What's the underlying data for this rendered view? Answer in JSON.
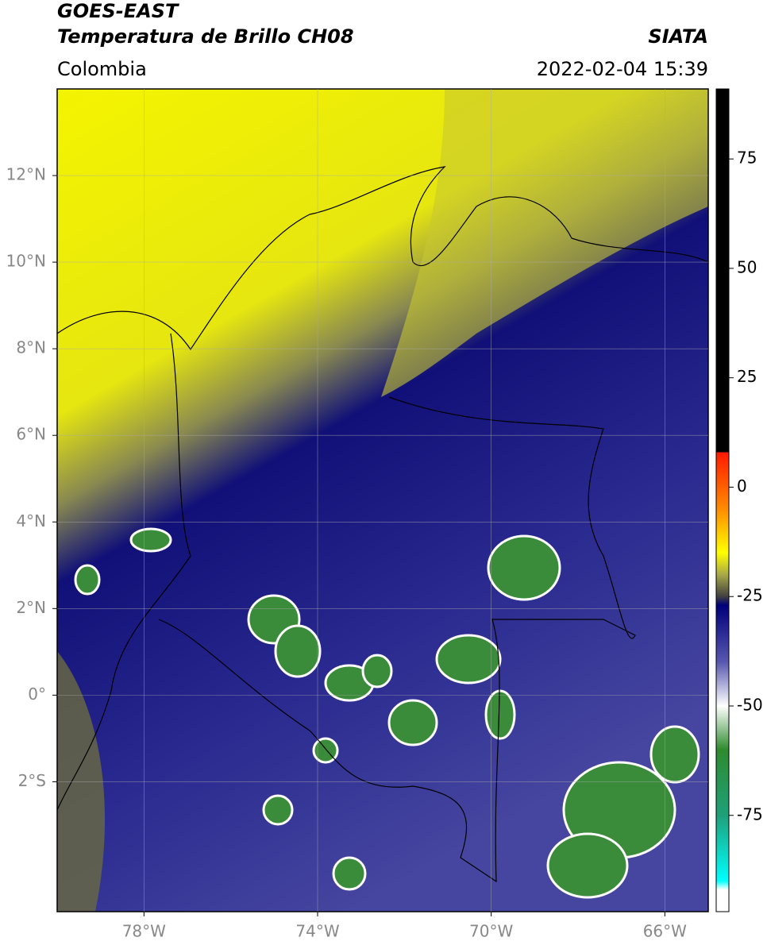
{
  "header": {
    "title_line1": "GOES-EAST",
    "title_line2": "Temperatura de Brillo CH08",
    "source": "SIATA",
    "region": "Colombia",
    "timestamp": "2022-02-04 15:39"
  },
  "map": {
    "lonlim": [
      -80,
      -65
    ],
    "latlim": [
      -5,
      14
    ],
    "lon_ticks": [
      {
        "value": -78,
        "label": "78°W"
      },
      {
        "value": -74,
        "label": "74°W"
      },
      {
        "value": -70,
        "label": "70°W"
      },
      {
        "value": -66,
        "label": "66°W"
      }
    ],
    "lat_ticks": [
      {
        "value": 12,
        "label": "12°N"
      },
      {
        "value": 10,
        "label": "10°N"
      },
      {
        "value": 8,
        "label": "8°N"
      },
      {
        "value": 6,
        "label": "6°N"
      },
      {
        "value": 4,
        "label": "4°N"
      },
      {
        "value": 2,
        "label": "2°N"
      },
      {
        "value": 0,
        "label": "0°"
      },
      {
        "value": -2,
        "label": "2°S"
      }
    ],
    "grid": true
  },
  "colorbar": {
    "clim": [
      -97,
      91
    ],
    "ticks": [
      75,
      50,
      25,
      0,
      -25,
      -50,
      -75
    ],
    "stops": [
      [
        91,
        "#000000"
      ],
      [
        8,
        "#000000"
      ],
      [
        8,
        "#ff1a00"
      ],
      [
        -5,
        "#ff8c00"
      ],
      [
        -15,
        "#ffff00"
      ],
      [
        -20,
        "#a8a848"
      ],
      [
        -25,
        "#404040"
      ],
      [
        -27,
        "#00007a"
      ],
      [
        -40,
        "#5858b0"
      ],
      [
        -50,
        "#ffffff"
      ],
      [
        -60,
        "#2e8b2e"
      ],
      [
        -75,
        "#1fa07a"
      ],
      [
        -90,
        "#00ffff"
      ],
      [
        -92,
        "#ffffff"
      ],
      [
        -97,
        "#ffffff"
      ]
    ]
  }
}
